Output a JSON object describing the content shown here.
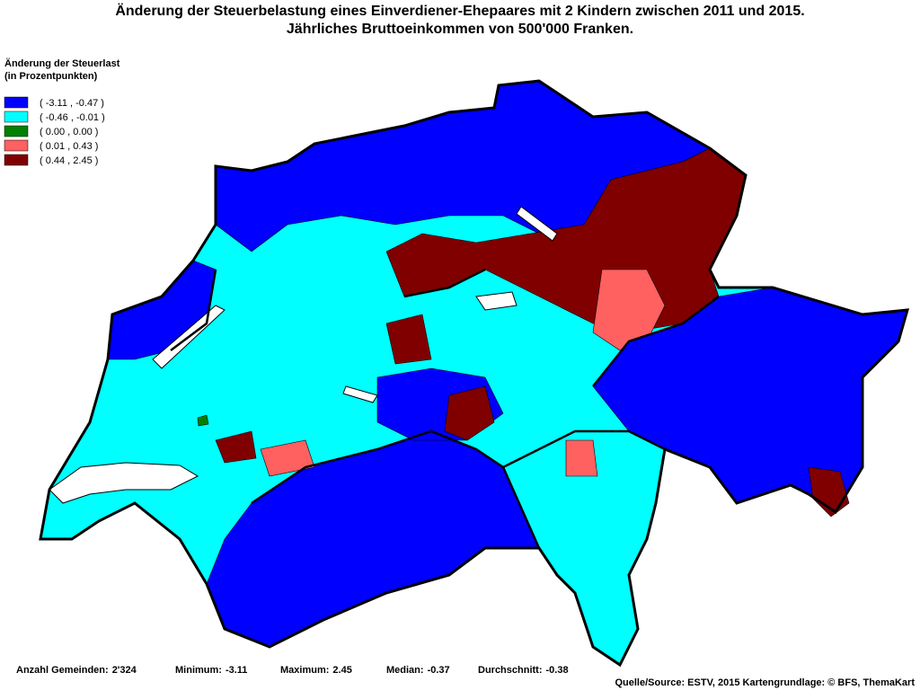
{
  "header": {
    "title_lines": [
      "Änderung der Steuerbelastung eines Einverdiener-Ehepaares mit 2 Kindern zwischen 2011 und 2015.",
      "Jährliches Bruttoeinkommen von 500'000 Franken."
    ]
  },
  "legend": {
    "title": "Änderung der Steuerlast",
    "subtitle": "(in Prozentpunkten)",
    "items": [
      {
        "label": "( -3.11 , -0.47 )",
        "color": "#0000ff"
      },
      {
        "label": "( -0.46 , -0.01 )",
        "color": "#00ffff"
      },
      {
        "label": "( 0.00 , 0.00 )",
        "color": "#008000"
      },
      {
        "label": "( 0.01 , 0.43 )",
        "color": "#ff6060"
      },
      {
        "label": "( 0.44 , 2.45 )",
        "color": "#800000"
      }
    ]
  },
  "footer": {
    "stats": [
      {
        "label": "Anzahl Gemeinden:",
        "value": "2'324"
      },
      {
        "label": "Minimum:",
        "value": "-3.11"
      },
      {
        "label": "Maximum:",
        "value": "2.45"
      },
      {
        "label": "Median:",
        "value": "-0.37"
      },
      {
        "label": "Durchschnitt:",
        "value": "-0.38"
      }
    ],
    "source": "Quelle/Source: ESTV, 2015 Kartengrundlage: © BFS, ThemaKart"
  }
}
